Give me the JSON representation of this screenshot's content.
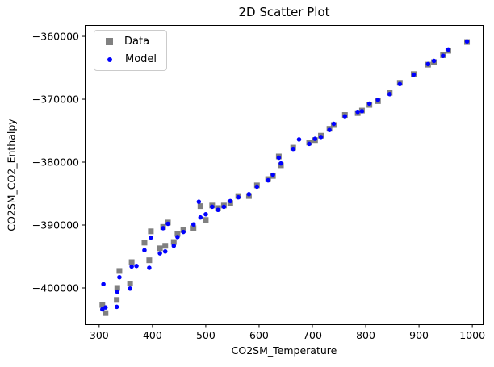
{
  "chart_data": {
    "type": "scatter",
    "title": "2D Scatter Plot",
    "xlabel": "CO2SM_Temperature",
    "ylabel": "CO2SM_CO2_Enthalpy",
    "xlim": [
      273,
      1021
    ],
    "ylim": [
      -405900,
      -358200
    ],
    "grid": false,
    "xticks": {
      "values": [
        300,
        400,
        500,
        600,
        700,
        800,
        900,
        1000
      ],
      "labels": [
        "300",
        "400",
        "500",
        "600",
        "700",
        "800",
        "900",
        "1000"
      ]
    },
    "yticks": {
      "values": [
        -360000,
        -370000,
        -380000,
        -390000,
        -400000
      ],
      "labels": [
        "−360000",
        "−370000",
        "−380000",
        "−390000",
        "−400000"
      ]
    },
    "colors": {
      "data": "#808080",
      "model": "#0000ff",
      "spine": "#000000",
      "legend_border": "#cbcbcb"
    },
    "legend": {
      "position": "upper left",
      "items": [
        {
          "label": "Data",
          "marker": "square",
          "color": "#808080"
        },
        {
          "label": "Model",
          "marker": "circle",
          "color": "#0000ff"
        }
      ]
    },
    "series": [
      {
        "name": "Data",
        "marker": "square",
        "color": "#808080",
        "size": 7,
        "points": [
          [
            306,
            -402700
          ],
          [
            312,
            -404000
          ],
          [
            333,
            -401900
          ],
          [
            334,
            -400000
          ],
          [
            338,
            -397300
          ],
          [
            358,
            -399300
          ],
          [
            361,
            -395900
          ],
          [
            385,
            -392800
          ],
          [
            394,
            -395600
          ],
          [
            397,
            -391000
          ],
          [
            414,
            -393700
          ],
          [
            420,
            -390300
          ],
          [
            424,
            -393300
          ],
          [
            429,
            -389600
          ],
          [
            440,
            -392700
          ],
          [
            447,
            -391400
          ],
          [
            458,
            -390800
          ],
          [
            477,
            -390500
          ],
          [
            490,
            -387000
          ],
          [
            500,
            -389200
          ],
          [
            512,
            -386900
          ],
          [
            523,
            -387300
          ],
          [
            534,
            -386900
          ],
          [
            546,
            -386500
          ],
          [
            561,
            -385400
          ],
          [
            581,
            -385400
          ],
          [
            596,
            -383700
          ],
          [
            617,
            -382700
          ],
          [
            626,
            -382200
          ],
          [
            637,
            -379100
          ],
          [
            641,
            -380500
          ],
          [
            664,
            -377700
          ],
          [
            694,
            -376900
          ],
          [
            705,
            -376500
          ],
          [
            716,
            -375800
          ],
          [
            732,
            -374700
          ],
          [
            740,
            -374100
          ],
          [
            761,
            -372500
          ],
          [
            785,
            -372200
          ],
          [
            793,
            -371800
          ],
          [
            807,
            -370900
          ],
          [
            823,
            -370300
          ],
          [
            845,
            -369000
          ],
          [
            864,
            -367400
          ],
          [
            890,
            -366000
          ],
          [
            917,
            -364500
          ],
          [
            928,
            -364100
          ],
          [
            945,
            -363000
          ],
          [
            955,
            -362300
          ],
          [
            990,
            -360900
          ]
        ]
      },
      {
        "name": "Model",
        "marker": "circle",
        "color": "#0000ff",
        "size": 5.5,
        "points": [
          [
            306,
            -403400
          ],
          [
            312,
            -403100
          ],
          [
            333,
            -403000
          ],
          [
            334,
            -400600
          ],
          [
            338,
            -398300
          ],
          [
            358,
            -400100
          ],
          [
            361,
            -396600
          ],
          [
            385,
            -394000
          ],
          [
            394,
            -396800
          ],
          [
            397,
            -392000
          ],
          [
            414,
            -394500
          ],
          [
            420,
            -390500
          ],
          [
            424,
            -394200
          ],
          [
            429,
            -389800
          ],
          [
            440,
            -393300
          ],
          [
            447,
            -391900
          ],
          [
            458,
            -391100
          ],
          [
            477,
            -389900
          ],
          [
            490,
            -388800
          ],
          [
            500,
            -388300
          ],
          [
            512,
            -387100
          ],
          [
            523,
            -387600
          ],
          [
            534,
            -387100
          ],
          [
            546,
            -386200
          ],
          [
            561,
            -385600
          ],
          [
            581,
            -385100
          ],
          [
            596,
            -383900
          ],
          [
            617,
            -382900
          ],
          [
            626,
            -382000
          ],
          [
            637,
            -379300
          ],
          [
            641,
            -380200
          ],
          [
            664,
            -377900
          ],
          [
            694,
            -377100
          ],
          [
            705,
            -376300
          ],
          [
            716,
            -376000
          ],
          [
            732,
            -374900
          ],
          [
            740,
            -373900
          ],
          [
            761,
            -372700
          ],
          [
            785,
            -372000
          ],
          [
            793,
            -371900
          ],
          [
            807,
            -370700
          ],
          [
            823,
            -370100
          ],
          [
            845,
            -369200
          ],
          [
            864,
            -367600
          ],
          [
            890,
            -366100
          ],
          [
            917,
            -364400
          ],
          [
            928,
            -363900
          ],
          [
            945,
            -363100
          ],
          [
            955,
            -362100
          ],
          [
            990,
            -360800
          ],
          [
            308,
            -399400
          ],
          [
            370,
            -396500
          ],
          [
            487,
            -386300
          ],
          [
            675,
            -376400
          ]
        ]
      }
    ]
  }
}
